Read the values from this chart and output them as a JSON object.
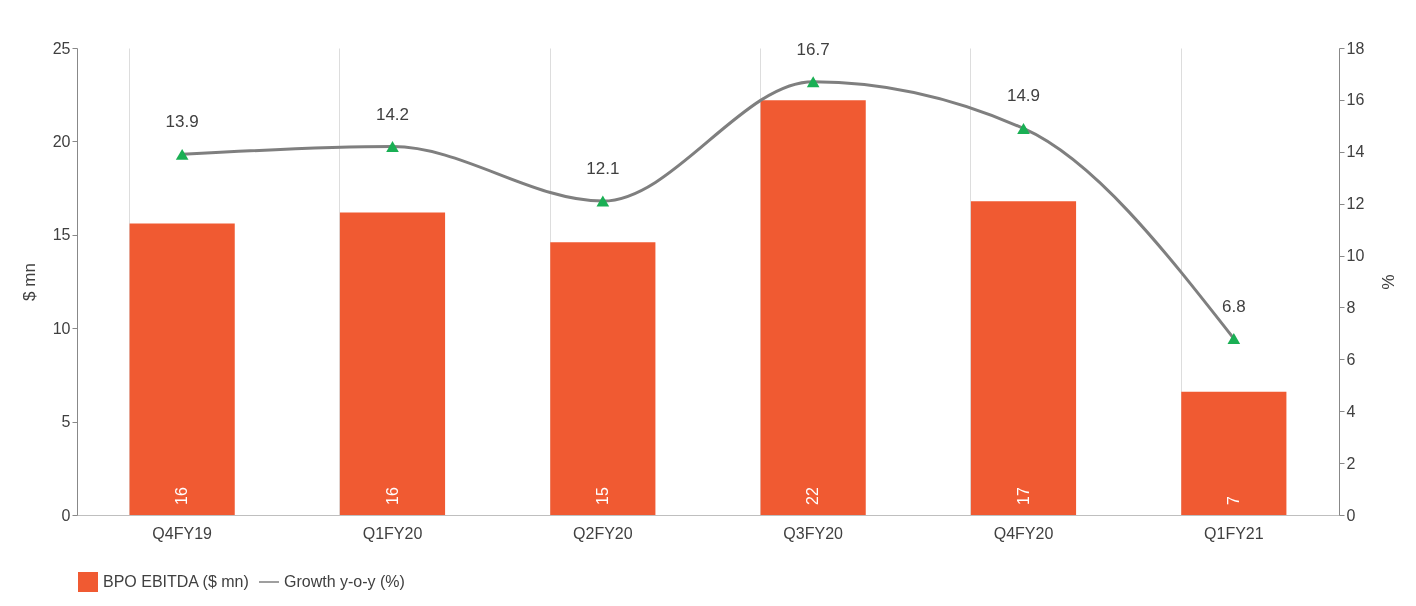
{
  "chart_data": {
    "type": "bar",
    "categories": [
      "Q4FY19",
      "Q1FY20",
      "Q2FY20",
      "Q3FY20",
      "Q4FY20",
      "Q1FY21"
    ],
    "ylabel": "$ mn",
    "y2label": "%",
    "ylim": [
      0,
      25
    ],
    "yticks": [
      0,
      5,
      10,
      15,
      20,
      25
    ],
    "y2lim": [
      0,
      18
    ],
    "y2ticks": [
      0,
      2,
      4,
      6,
      8,
      10,
      12,
      14,
      16,
      18
    ],
    "grid": "x",
    "legend": "bottom",
    "series": [
      {
        "name": "BPO EBITDA ($ mn)",
        "color": "#f05a32",
        "values": [
          15.6,
          16.2,
          14.6,
          22.2,
          16.8,
          6.6
        ],
        "value_labels": [
          "16",
          "16",
          "15",
          "22",
          "17",
          "7"
        ]
      },
      {
        "name": "Growth y-o-y (%)",
        "type": "line",
        "axis": "y2",
        "color": "#7f7f7f",
        "colors": [
          "#1aaf54",
          "#1aaf54",
          "#1aaf54",
          "#1aaf54",
          "#1aaf54",
          "#1aaf54"
        ],
        "marker": "triangle",
        "values": [
          13.9,
          14.2,
          12.1,
          16.7,
          14.9,
          6.8
        ],
        "value_labels": [
          "13.9",
          "14.2",
          "12.1",
          "16.7",
          "14.9",
          "6.8"
        ]
      }
    ]
  }
}
